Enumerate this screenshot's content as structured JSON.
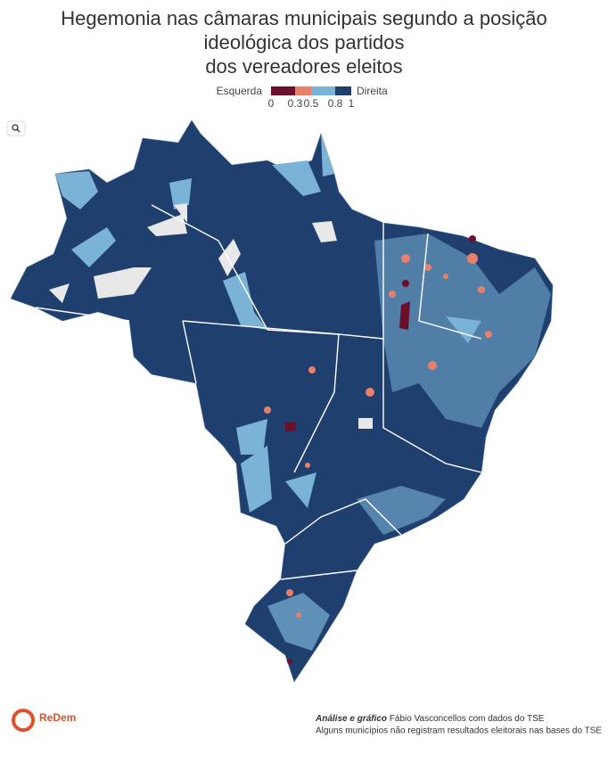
{
  "header": {
    "title": [
      "Hegemonia nas câmaras municipais segundo a posição",
      "ideológica dos partidos",
      "dos vereadores eleitos"
    ]
  },
  "legend": {
    "left_label": "Esquerda",
    "right_label": "Direita",
    "ticks": [
      0,
      0.3,
      0.5,
      0.8,
      1
    ],
    "colors": [
      "#6b0f2a",
      "#e8806a",
      "#7ab3d6",
      "#1f3f6e"
    ]
  },
  "footer": {
    "credit_label": "Análise e gráfico",
    "credit_text": "Fábio Vasconcellos com dados do TSE",
    "note": "Alguns municípios não registram resultados eleitorais nas bases do TSE"
  },
  "logo": {
    "name": "ReDem"
  }
}
